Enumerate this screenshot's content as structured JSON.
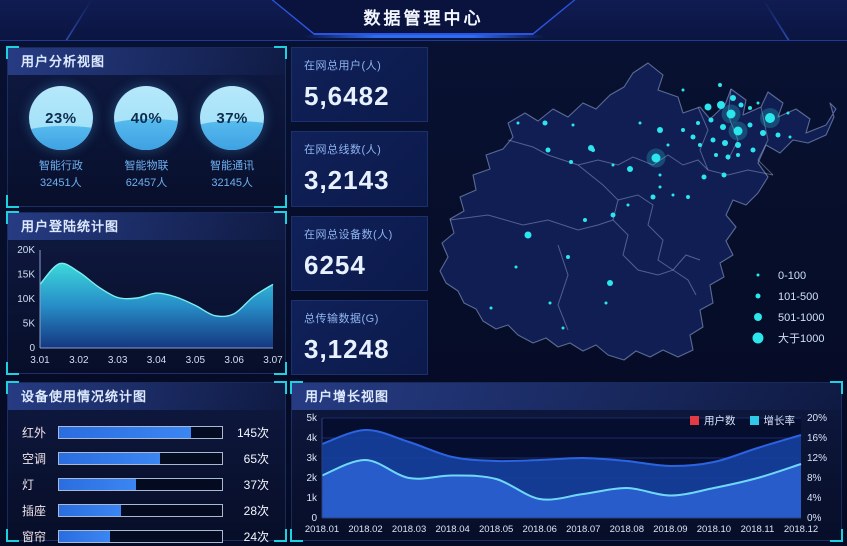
{
  "header": {
    "title": "数据管理中心"
  },
  "panels": {
    "user_analysis": {
      "title": "用户分析视图",
      "gauges": [
        {
          "percent": "23%",
          "label": "智能行政",
          "count": "32451人",
          "fill": 40
        },
        {
          "percent": "40%",
          "label": "智能物联",
          "count": "62457人",
          "fill": 52
        },
        {
          "percent": "37%",
          "label": "智能通讯",
          "count": "32145人",
          "fill": 49
        }
      ]
    },
    "login_stats": {
      "title": "用户登陆统计图"
    },
    "device_usage": {
      "title": "设备使用情况统计图"
    },
    "user_growth": {
      "title": "用户增长视图"
    }
  },
  "kpis": [
    {
      "label": "在网总用户(人)",
      "value": "5,6482"
    },
    {
      "label": "在网总线数(人)",
      "value": "3,2143"
    },
    {
      "label": "在网总设备数(人)",
      "value": "6254"
    },
    {
      "label": "总传输数据(G)",
      "value": "3,1248"
    }
  ],
  "colors": {
    "accent_cyan": "#1fd0e0",
    "dot_cyan": "#2ce6ee",
    "bar_blue": "#2f78ec",
    "users_fill": "#16409f",
    "users_line": "#2b63e0",
    "growth_fill": "#2a63d4",
    "growth_line": "#6fd8f8",
    "legend_users_swatch": "#e23b43",
    "legend_growth_swatch": "#2fc8e8"
  },
  "chart_data": [
    {
      "id": "login",
      "type": "area",
      "title": "用户登陆统计图",
      "x": [
        3.01,
        3.015,
        3.02,
        3.025,
        3.03,
        3.035,
        3.04,
        3.045,
        3.05,
        3.055,
        3.06,
        3.065,
        3.07
      ],
      "values": [
        13,
        17.2,
        15.5,
        12.5,
        10.3,
        10.2,
        11.2,
        10.4,
        8.7,
        6.6,
        7.0,
        10.5,
        13
      ],
      "xlabel": "",
      "ylabel": "",
      "ylim": [
        0,
        20
      ],
      "y_ticks": [
        "0",
        "5K",
        "10K",
        "15K",
        "20K"
      ],
      "x_ticks": [
        "3.01",
        "3.02",
        "3.03",
        "3.04",
        "3.05",
        "3.06",
        "3.07"
      ],
      "grid": false
    },
    {
      "id": "device",
      "type": "bar",
      "title": "设备使用情况统计图",
      "categories": [
        "红外",
        "空调",
        "灯",
        "插座",
        "窗帘"
      ],
      "values": [
        145,
        65,
        37,
        28,
        24
      ],
      "unit": "次",
      "bar_pct": [
        81,
        62,
        47,
        38,
        31
      ]
    },
    {
      "id": "growth",
      "type": "area",
      "title": "用户增长视图",
      "categories": [
        "2018.01",
        "2018.02",
        "2018.03",
        "2018.04",
        "2018.05",
        "2018.06",
        "2018.07",
        "2018.08",
        "2018.09",
        "2018.10",
        "2018.11",
        "2018.12"
      ],
      "series": [
        {
          "name": "用户数",
          "axis": "left",
          "values": [
            3.7,
            4.4,
            3.8,
            3.05,
            2.85,
            2.9,
            3.0,
            2.85,
            2.6,
            2.8,
            3.5,
            4.15
          ]
        },
        {
          "name": "增长率",
          "axis": "right",
          "values": [
            8.5,
            11.6,
            8.0,
            8.5,
            7.8,
            3.8,
            4.8,
            6.0,
            4.5,
            6.0,
            8.0,
            10.8
          ]
        }
      ],
      "ylim_left": [
        0,
        5
      ],
      "y_ticks_left": [
        "0",
        "1k",
        "2k",
        "3k",
        "4k",
        "5k"
      ],
      "ylim_right": [
        0,
        20
      ],
      "y_ticks_right": [
        "0%",
        "4%",
        "8%",
        "12%",
        "16%",
        "20%"
      ],
      "legend_position": "top-right",
      "grid": true
    },
    {
      "id": "map",
      "type": "scatter-map",
      "legend": [
        {
          "label": "0-100",
          "r": 1.5
        },
        {
          "label": "101-500",
          "r": 2.5
        },
        {
          "label": "501-1000",
          "r": 4
        },
        {
          "label": "大于1000",
          "r": 5.5
        }
      ],
      "points": [
        [
          255,
          45,
          1.5,
          0
        ],
        [
          292,
          40,
          2,
          0
        ],
        [
          305,
          53,
          3,
          0
        ],
        [
          280,
          62,
          3.5,
          0
        ],
        [
          293,
          60,
          4,
          0
        ],
        [
          313,
          60,
          2.5,
          0
        ],
        [
          303,
          69,
          4.5,
          1
        ],
        [
          322,
          63,
          2,
          0
        ],
        [
          330,
          58,
          1.5,
          0
        ],
        [
          342,
          73,
          5,
          1
        ],
        [
          360,
          68,
          1.5,
          0
        ],
        [
          283,
          75,
          2.5,
          0
        ],
        [
          270,
          78,
          2,
          0
        ],
        [
          295,
          82,
          3,
          0
        ],
        [
          310,
          86,
          4.5,
          1
        ],
        [
          322,
          80,
          2.5,
          0
        ],
        [
          335,
          88,
          3,
          0
        ],
        [
          350,
          90,
          2.5,
          0
        ],
        [
          362,
          92,
          1.5,
          0
        ],
        [
          285,
          95,
          2.5,
          0
        ],
        [
          297,
          98,
          3,
          0
        ],
        [
          272,
          100,
          2,
          0
        ],
        [
          310,
          100,
          3,
          0
        ],
        [
          325,
          105,
          2.5,
          0
        ],
        [
          288,
          110,
          2,
          0
        ],
        [
          300,
          112,
          2.5,
          0
        ],
        [
          255,
          85,
          2,
          0
        ],
        [
          265,
          92,
          2.5,
          0
        ],
        [
          240,
          100,
          1.5,
          0
        ],
        [
          90,
          78,
          1.5,
          0
        ],
        [
          117,
          78,
          2.5,
          0
        ],
        [
          145,
          80,
          1.5,
          0
        ],
        [
          163,
          103,
          3,
          0
        ],
        [
          232,
          85,
          3,
          0
        ],
        [
          212,
          78,
          1.5,
          0
        ],
        [
          143,
          117,
          2,
          0
        ],
        [
          185,
          120,
          1.5,
          0
        ],
        [
          120,
          105,
          2.5,
          0
        ],
        [
          165,
          105,
          2,
          0
        ],
        [
          228,
          113,
          4.5,
          1
        ],
        [
          202,
          124,
          3,
          0
        ],
        [
          232,
          130,
          1.5,
          0
        ],
        [
          276,
          132,
          2.5,
          0
        ],
        [
          296,
          130,
          2.5,
          0
        ],
        [
          310,
          110,
          2,
          0
        ],
        [
          100,
          190,
          3.5,
          0
        ],
        [
          185,
          170,
          2.5,
          0
        ],
        [
          157,
          175,
          2,
          0
        ],
        [
          140,
          212,
          2,
          0
        ],
        [
          182,
          238,
          3,
          0
        ],
        [
          122,
          258,
          1.5,
          0
        ],
        [
          88,
          222,
          1.5,
          0
        ],
        [
          63,
          263,
          1.5,
          0
        ],
        [
          135,
          283,
          1.5,
          0
        ],
        [
          178,
          258,
          1.5,
          0
        ],
        [
          225,
          152,
          2.5,
          0
        ],
        [
          245,
          150,
          1.5,
          0
        ],
        [
          260,
          152,
          2,
          0
        ],
        [
          200,
          160,
          1.5,
          0
        ],
        [
          232,
          142,
          1.5,
          0
        ]
      ]
    }
  ]
}
